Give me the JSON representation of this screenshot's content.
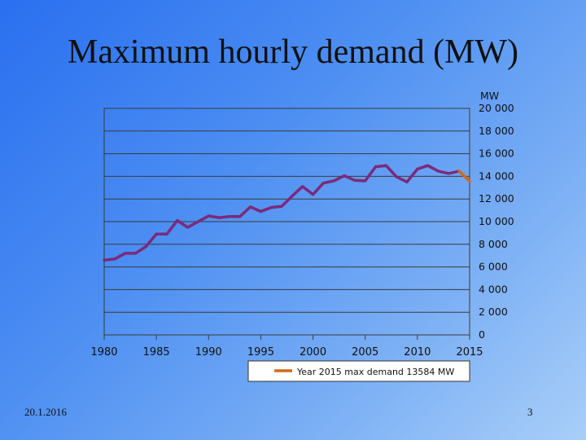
{
  "slide": {
    "title": "Maximum hourly demand (MW)",
    "date": "20.1.2016",
    "page_number": "3"
  },
  "chart_data": {
    "type": "line",
    "title": "Maximum hourly demand (MW)",
    "xlabel": "",
    "ylabel": "MW",
    "xlim": [
      1980,
      2015
    ],
    "ylim": [
      0,
      20000
    ],
    "x_ticks": [
      "1980",
      "1985",
      "1990",
      "1995",
      "2000",
      "2005",
      "2010",
      "2015"
    ],
    "y_ticks": [
      "0",
      "2 000",
      "4 000",
      "6 000",
      "8 000",
      "10 000",
      "12 000",
      "14 000",
      "16 000",
      "18 000",
      "20 000"
    ],
    "grid": true,
    "legend_position": "bottom",
    "colors": {
      "main": "#7b2a7a",
      "highlight": "#d06a1a"
    },
    "series": [
      {
        "name": "",
        "color": "#7b2a7a",
        "x": [
          1980,
          1981,
          1982,
          1983,
          1984,
          1985,
          1986,
          1987,
          1988,
          1989,
          1990,
          1991,
          1992,
          1993,
          1994,
          1995,
          1996,
          1997,
          1998,
          1999,
          2000,
          2001,
          2002,
          2003,
          2004,
          2005,
          2006,
          2007,
          2008,
          2009,
          2010,
          2011,
          2012,
          2013,
          2014
        ],
        "y": [
          6600,
          6700,
          7200,
          7200,
          7800,
          8900,
          8900,
          10100,
          9500,
          10000,
          10500,
          10350,
          10450,
          10450,
          11300,
          10900,
          11250,
          11350,
          12250,
          13100,
          12400,
          13400,
          13600,
          14050,
          13650,
          13600,
          14850,
          14950,
          13950,
          13500,
          14650,
          14950,
          14450,
          14250,
          14450
        ]
      },
      {
        "name": "Year 2015 max demand 13584  MW",
        "color": "#d06a1a",
        "x": [
          2014,
          2015
        ],
        "y": [
          14450,
          13584
        ]
      }
    ]
  }
}
